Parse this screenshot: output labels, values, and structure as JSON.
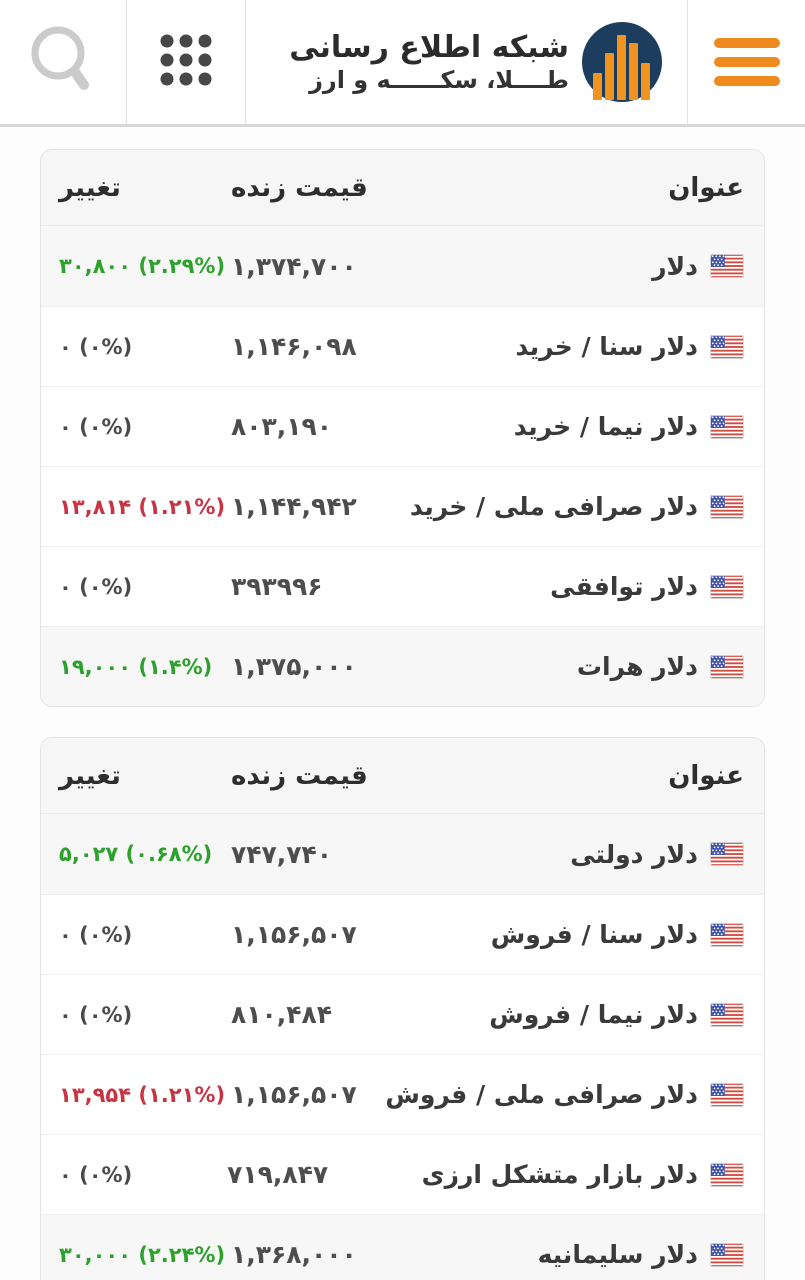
{
  "header": {
    "title": "شبکه اطلاع رسانی",
    "subtitle": "طــــلا، سکــــــه و ارز",
    "search_icon": "search-icon",
    "apps_icon": "apps-grid-icon",
    "menu_icon": "hamburger-menu-icon",
    "logo_icon": "logo-bar-chart-icon"
  },
  "colors": {
    "accent_orange": "#EF8A1E",
    "logo_navy": "#1D3D5E",
    "positive": "#2CA12C",
    "negative": "#C93443",
    "neutral_text": "#4A4A4A"
  },
  "tables": [
    {
      "headers": {
        "title": "عنوان",
        "price": "قیمت زنده",
        "change": "تغییر"
      },
      "rows": [
        {
          "flag": "us-flag-icon",
          "title": "دلار",
          "price": "۱,۳۷۴,۷۰۰",
          "change": "۳۰,۸۰۰ (۲.۲۹%)",
          "trend": "up",
          "highlight": true
        },
        {
          "flag": "us-flag-icon",
          "title": "دلار سنا / خرید",
          "price": "۱,۱۴۶,۰۹۸",
          "change": "۰ (۰%)",
          "trend": "flat",
          "highlight": false
        },
        {
          "flag": "us-flag-icon",
          "title": "دلار نیما / خرید",
          "price": "۸۰۳,۱۹۰",
          "change": "۰ (۰%)",
          "trend": "flat",
          "highlight": false
        },
        {
          "flag": "us-flag-icon",
          "title": "دلار صرافی ملی / خرید",
          "price": "۱,۱۴۴,۹۴۲",
          "change": "۱۳,۸۱۴ (۱.۲۱%)",
          "trend": "down",
          "highlight": false
        },
        {
          "flag": "us-flag-icon",
          "title": "دلار توافقی",
          "price": "۳۹۳۹۹۶",
          "change": "۰ (۰%)",
          "trend": "flat",
          "highlight": false
        },
        {
          "flag": "us-flag-icon",
          "title": "دلار هرات",
          "price": "۱,۳۷۵,۰۰۰",
          "change": "۱۹,۰۰۰ (۱.۴%)",
          "trend": "up",
          "highlight": true
        }
      ]
    },
    {
      "headers": {
        "title": "عنوان",
        "price": "قیمت زنده",
        "change": "تغییر"
      },
      "rows": [
        {
          "flag": "us-flag-icon",
          "title": "دلار دولتی",
          "price": "۷۴۷,۷۴۰",
          "change": "۵,۰۲۷ (۰.۶۸%)",
          "trend": "up",
          "highlight": true
        },
        {
          "flag": "us-flag-icon",
          "title": "دلار سنا / فروش",
          "price": "۱,۱۵۶,۵۰۷",
          "change": "۰ (۰%)",
          "trend": "flat",
          "highlight": false
        },
        {
          "flag": "us-flag-icon",
          "title": "دلار نیما / فروش",
          "price": "۸۱۰,۴۸۴",
          "change": "۰ (۰%)",
          "trend": "flat",
          "highlight": false
        },
        {
          "flag": "us-flag-icon",
          "title": "دلار صرافی ملی / فروش",
          "price": "۱,۱۵۶,۵۰۷",
          "change": "۱۳,۹۵۴ (۱.۲۱%)",
          "trend": "down",
          "highlight": false
        },
        {
          "flag": "us-flag-icon",
          "title": "دلار بازار متشکل ارزی",
          "price": "۷۱۹,۸۴۷",
          "change": "۰ (۰%)",
          "trend": "flat",
          "highlight": false
        },
        {
          "flag": "us-flag-icon",
          "title": "دلار سلیمانیه",
          "price": "۱,۳۶۸,۰۰۰",
          "change": "۳۰,۰۰۰ (۲.۲۴%)",
          "trend": "up",
          "highlight": true
        }
      ]
    }
  ]
}
